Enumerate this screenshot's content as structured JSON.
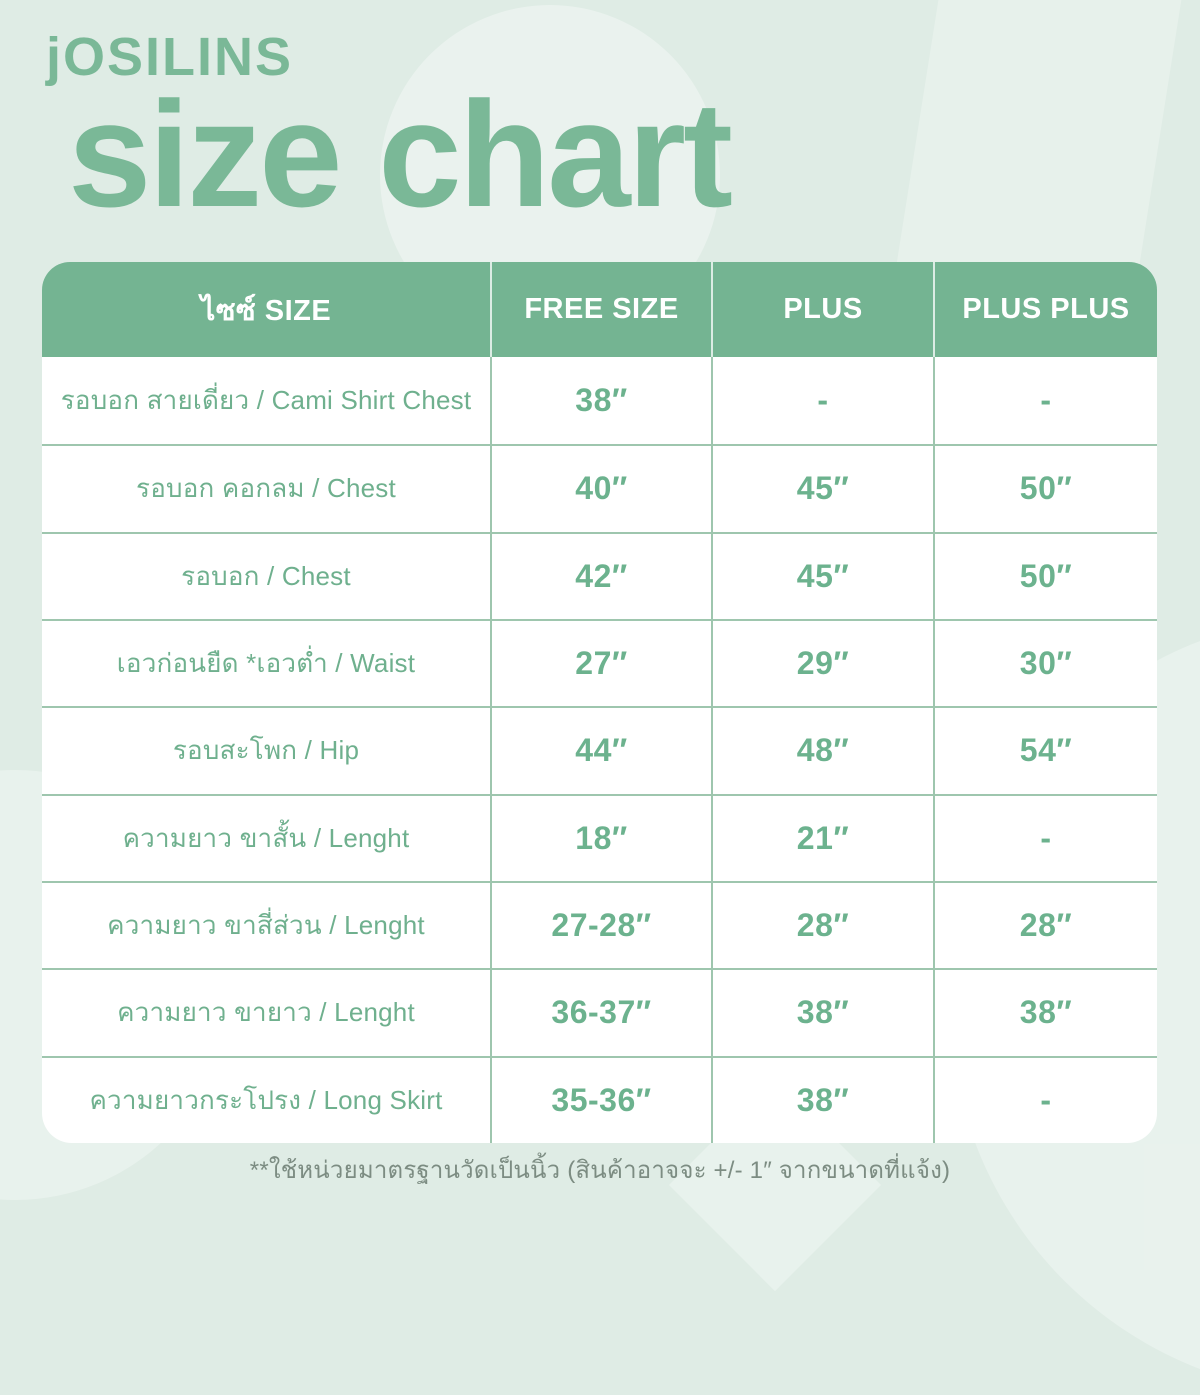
{
  "brand": "jOSILINS",
  "chart_data": {
    "type": "table",
    "title": "size chart",
    "columns": [
      "ไซซ์ SIZE",
      "FREE SIZE",
      "PLUS",
      "PLUS PLUS"
    ],
    "rows": [
      {
        "label": "รอบอก สายเดี่ยว / Cami Shirt Chest",
        "values": [
          "38″",
          "-",
          "-"
        ]
      },
      {
        "label": "รอบอก คอกลม / Chest",
        "values": [
          "40″",
          "45″",
          "50″"
        ]
      },
      {
        "label": "รอบอก / Chest",
        "values": [
          "42″",
          "45″",
          "50″"
        ]
      },
      {
        "label": "เอวก่อนยืด *เอวต่ำ / Waist",
        "values": [
          "27″",
          "29″",
          "30″"
        ]
      },
      {
        "label": "รอบสะโพก / Hip",
        "values": [
          "44″",
          "48″",
          "54″"
        ]
      },
      {
        "label": "ความยาว ขาสั้น / Lenght",
        "values": [
          "18″",
          "21″",
          "-"
        ]
      },
      {
        "label": "ความยาว ขาสี่ส่วน / Lenght",
        "values": [
          "27-28″",
          "28″",
          "28″"
        ]
      },
      {
        "label": "ความยาว ขายาว / Lenght",
        "values": [
          "36-37″",
          "38″",
          "38″"
        ]
      },
      {
        "label": "ความยาวกระโปรง / Long Skirt",
        "values": [
          "35-36″",
          "38″",
          "-"
        ]
      }
    ],
    "unit": "inches",
    "layout": {
      "grid": "on",
      "header_position": "top"
    }
  },
  "footnote": "**ใช้หน่วยมาตรฐานวัดเป็นนิ้ว (สินค้าอาจจะ +/- 1″ จากขนาดที่แจ้ง)",
  "colors": {
    "background_mint": "#dfece5",
    "header_green": "#74b492",
    "brand_green": "#7ab897",
    "text_green": "#6fb08e",
    "value_green": "#6cb28e",
    "grid_green": "#9ec6ae",
    "header_text": "#ffffff",
    "footnote_gray": "#7c8c82",
    "cell_white": "#ffffff"
  }
}
